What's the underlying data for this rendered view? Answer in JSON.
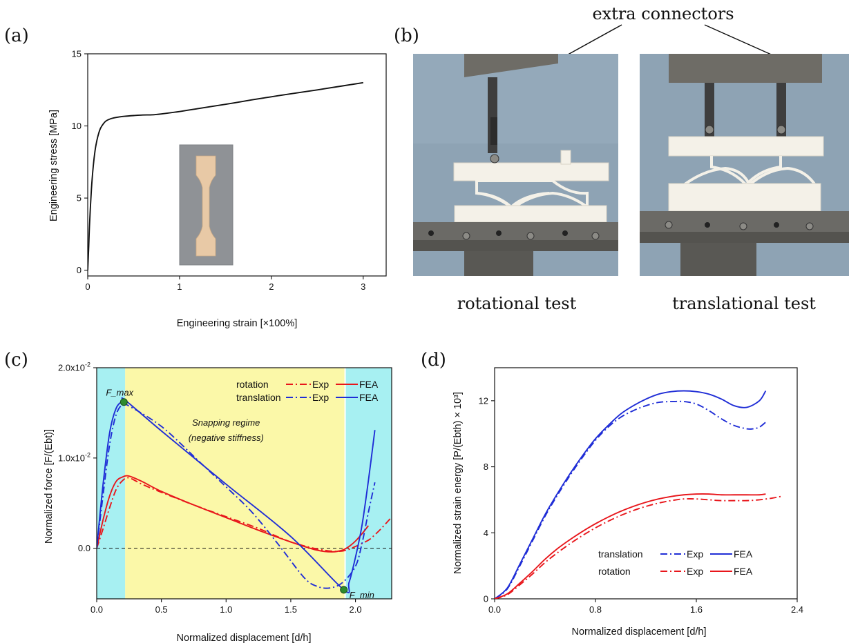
{
  "panels": {
    "a": "(a)",
    "b": "(b)",
    "c": "(c)",
    "d": "(d)"
  },
  "photos": {
    "annotation": "extra connectors",
    "left_caption": "rotational test",
    "right_caption": "translational test"
  },
  "colors": {
    "red": "#e8161b",
    "blue": "#1f2dd6",
    "black": "#111111",
    "cyan_region": "#a7f0f2",
    "yellow_region": "#fbf8a8",
    "marker": "#2e8b2e"
  },
  "chart_data": [
    {
      "id": "a",
      "type": "line",
      "xlabel": "Engineering strain [×100%]",
      "ylabel": "Engineering stress [MPa]",
      "xlim": [
        0,
        3.25
      ],
      "ylim": [
        -0.4,
        15
      ],
      "xticks": [
        0,
        1,
        2,
        3
      ],
      "yticks": [
        0,
        5,
        10,
        15
      ],
      "series": [
        {
          "x": [
            0,
            0.01,
            0.02,
            0.04,
            0.06,
            0.08,
            0.1,
            0.12,
            0.14,
            0.17,
            0.2,
            0.25,
            0.3,
            0.35,
            0.4,
            0.5,
            0.6,
            0.7,
            0.8,
            1.0,
            1.2,
            1.5,
            1.8,
            2.0,
            2.2,
            2.5,
            2.8,
            3.0
          ],
          "y": [
            0,
            1.5,
            3.2,
            5.6,
            7.2,
            8.3,
            9.0,
            9.5,
            9.85,
            10.15,
            10.35,
            10.5,
            10.58,
            10.63,
            10.67,
            10.72,
            10.76,
            10.77,
            10.83,
            11.0,
            11.2,
            11.5,
            11.82,
            12.02,
            12.22,
            12.5,
            12.8,
            13.0
          ]
        }
      ],
      "inset": "tensile specimen photo"
    },
    {
      "id": "c",
      "type": "line",
      "xlabel": "Normalized displacement [d/h]",
      "ylabel": "Normalized force [F/(Ebt)]",
      "xlim": [
        0,
        2.28
      ],
      "ylim": [
        -0.0056,
        0.02
      ],
      "xticks": [
        0.0,
        0.5,
        1.0,
        1.5,
        2.0
      ],
      "xtick_labels": [
        "0.0",
        "0.5",
        "1.0",
        "1.5",
        "2.0"
      ],
      "yticks": [
        0.0,
        0.01,
        0.02
      ],
      "ytick_labels": [
        "0.0",
        "1.0x10",
        "2.0x10"
      ],
      "ytick_exponents": [
        "",
        "-2",
        "-2"
      ],
      "regions": [
        {
          "from": 0,
          "to": 0.22,
          "color": "cyan"
        },
        {
          "from": 0.22,
          "to": 1.92,
          "color": "yellow"
        },
        {
          "from": 1.92,
          "to": 2.28,
          "color": "cyan"
        }
      ],
      "annotations": [
        {
          "text": "F_max",
          "x": 0.21,
          "y": 0.0162
        },
        {
          "text": "F_min",
          "x": 1.91,
          "y": -0.0046
        },
        {
          "text": "Snapping regime",
          "x": 1.0,
          "y": 0.0136
        },
        {
          "text": "(negative stiffness)",
          "x": 1.0,
          "y": 0.0119
        }
      ],
      "legend": {
        "rows": [
          "rotation",
          "translation"
        ],
        "exp_label": "Exp",
        "fea_label": "FEA",
        "placement": "top-right"
      },
      "series": [
        {
          "group": "rotation",
          "kind": "Exp",
          "color": "red",
          "dash": "dashdot",
          "x": [
            0,
            0.05,
            0.1,
            0.15,
            0.2,
            0.25,
            0.35,
            0.5,
            0.75,
            1.0,
            1.25,
            1.5,
            1.75,
            1.9,
            2.0,
            2.1,
            2.15,
            2.2,
            2.27
          ],
          "y": [
            0,
            0.0022,
            0.0045,
            0.0065,
            0.0075,
            0.0078,
            0.0071,
            0.0062,
            0.0048,
            0.0035,
            0.0022,
            0.0007,
            -0.0002,
            -0.0003,
            0.0002,
            0.0009,
            0.0015,
            0.0022,
            0.0033
          ]
        },
        {
          "group": "rotation",
          "kind": "FEA",
          "color": "red",
          "dash": "solid",
          "x": [
            0,
            0.05,
            0.1,
            0.15,
            0.2,
            0.25,
            0.35,
            0.5,
            0.75,
            1.0,
            1.25,
            1.5,
            1.7,
            1.82,
            1.9,
            1.95,
            2.0,
            2.05,
            2.1
          ],
          "y": [
            0,
            0.0032,
            0.0058,
            0.0074,
            0.0079,
            0.008,
            0.0074,
            0.0063,
            0.0048,
            0.0034,
            0.002,
            0.0007,
            -0.0002,
            -0.0004,
            -0.0002,
            0.0002,
            0.0008,
            0.0016,
            0.0025
          ]
        },
        {
          "group": "translation",
          "kind": "Exp",
          "color": "blue",
          "dash": "dashdot",
          "x": [
            0,
            0.05,
            0.1,
            0.15,
            0.2,
            0.22,
            0.5,
            0.8,
            1.0,
            1.2,
            1.4,
            1.6,
            1.7,
            1.8,
            1.9,
            2.0,
            2.05,
            2.1,
            2.15
          ],
          "y": [
            0,
            0.006,
            0.0115,
            0.0148,
            0.016,
            0.016,
            0.0135,
            0.0095,
            0.0068,
            0.004,
            0.0005,
            -0.0032,
            -0.0042,
            -0.0044,
            -0.0038,
            -0.002,
            0.0005,
            0.004,
            0.0073
          ]
        },
        {
          "group": "translation",
          "kind": "FEA",
          "color": "blue",
          "dash": "solid",
          "x": [
            0,
            0.05,
            0.1,
            0.15,
            0.2,
            0.22,
            0.5,
            1.0,
            1.5,
            1.91,
            1.95,
            2.0,
            2.05,
            2.1,
            2.15
          ],
          "y": [
            0,
            0.0072,
            0.0128,
            0.0155,
            0.0163,
            0.0164,
            0.013,
            0.0071,
            0.0013,
            -0.0046,
            -0.0038,
            -0.001,
            0.0025,
            0.0075,
            0.0131
          ]
        }
      ]
    },
    {
      "id": "d",
      "type": "line",
      "xlabel": "Normalized displacement [d/h]",
      "ylabel": "Normalized strain energy  [P/(Ebth) × 10³]",
      "xlim": [
        0,
        2.4
      ],
      "ylim": [
        0,
        14
      ],
      "xticks": [
        0.0,
        0.8,
        1.6,
        2.4
      ],
      "xtick_labels": [
        "0.0",
        "0.8",
        "1.6",
        "2.4"
      ],
      "yticks": [
        0,
        4,
        8,
        12
      ],
      "legend": {
        "rows": [
          "translation",
          "rotation"
        ],
        "exp_label": "Exp",
        "fea_label": "FEA",
        "placement": "lower-right"
      },
      "series": [
        {
          "group": "translation",
          "kind": "Exp",
          "color": "blue",
          "dash": "dashdot",
          "x": [
            0,
            0.1,
            0.2,
            0.3,
            0.4,
            0.5,
            0.6,
            0.7,
            0.8,
            0.9,
            1.0,
            1.1,
            1.2,
            1.3,
            1.4,
            1.5,
            1.6,
            1.7,
            1.8,
            1.9,
            2.0,
            2.05,
            2.1,
            2.15
          ],
          "y": [
            0,
            0.6,
            2.0,
            3.5,
            5.0,
            6.3,
            7.5,
            8.6,
            9.6,
            10.4,
            11.0,
            11.4,
            11.7,
            11.9,
            11.95,
            11.95,
            11.8,
            11.4,
            10.9,
            10.5,
            10.3,
            10.3,
            10.4,
            10.7
          ]
        },
        {
          "group": "translation",
          "kind": "FEA",
          "color": "blue",
          "dash": "solid",
          "x": [
            0,
            0.1,
            0.2,
            0.3,
            0.4,
            0.5,
            0.6,
            0.7,
            0.8,
            0.9,
            1.0,
            1.1,
            1.2,
            1.3,
            1.4,
            1.5,
            1.6,
            1.7,
            1.8,
            1.9,
            2.0,
            2.1,
            2.15
          ],
          "y": [
            0,
            0.65,
            2.1,
            3.6,
            5.1,
            6.4,
            7.6,
            8.7,
            9.7,
            10.5,
            11.2,
            11.7,
            12.1,
            12.4,
            12.55,
            12.6,
            12.55,
            12.4,
            12.1,
            11.7,
            11.6,
            12.0,
            12.6
          ]
        },
        {
          "group": "rotation",
          "kind": "Exp",
          "color": "red",
          "dash": "dashdot",
          "x": [
            0,
            0.1,
            0.2,
            0.3,
            0.4,
            0.5,
            0.6,
            0.7,
            0.8,
            0.9,
            1.0,
            1.1,
            1.2,
            1.3,
            1.4,
            1.5,
            1.6,
            1.7,
            1.8,
            1.9,
            2.0,
            2.1,
            2.2,
            2.27
          ],
          "y": [
            0,
            0.25,
            0.85,
            1.5,
            2.2,
            2.8,
            3.35,
            3.85,
            4.3,
            4.7,
            5.05,
            5.35,
            5.6,
            5.8,
            5.95,
            6.05,
            6.05,
            6.0,
            5.95,
            5.95,
            5.95,
            6.0,
            6.1,
            6.2
          ]
        },
        {
          "group": "rotation",
          "kind": "FEA",
          "color": "red",
          "dash": "solid",
          "x": [
            0,
            0.1,
            0.2,
            0.3,
            0.4,
            0.5,
            0.6,
            0.7,
            0.8,
            0.9,
            1.0,
            1.1,
            1.2,
            1.3,
            1.4,
            1.5,
            1.6,
            1.7,
            1.8,
            1.9,
            2.0,
            2.1,
            2.15
          ],
          "y": [
            0,
            0.3,
            0.95,
            1.65,
            2.4,
            3.05,
            3.6,
            4.1,
            4.55,
            4.95,
            5.3,
            5.6,
            5.85,
            6.05,
            6.2,
            6.3,
            6.35,
            6.35,
            6.3,
            6.3,
            6.3,
            6.3,
            6.35
          ]
        }
      ]
    }
  ]
}
